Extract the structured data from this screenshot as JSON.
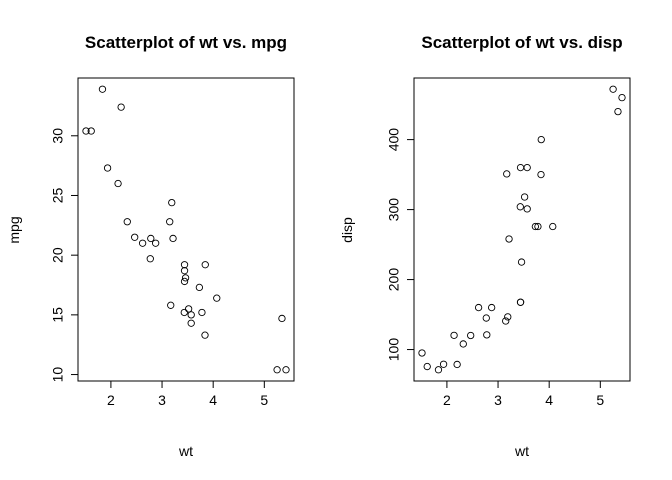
{
  "chart_data": [
    {
      "type": "scatter",
      "title": "Scatterplot of wt vs. mpg",
      "xlabel": "wt",
      "ylabel": "mpg",
      "xlim": [
        1.513,
        5.424
      ],
      "ylim": [
        10.4,
        33.9
      ],
      "xticks": [
        2,
        3,
        4,
        5
      ],
      "yticks": [
        10,
        15,
        20,
        25,
        30
      ],
      "grid": false,
      "legend": "none",
      "marker": "open-circle",
      "x": [
        2.62,
        2.875,
        2.32,
        3.215,
        3.44,
        3.46,
        3.57,
        3.19,
        3.15,
        3.44,
        3.44,
        4.07,
        3.73,
        3.78,
        5.25,
        5.424,
        5.345,
        2.2,
        1.615,
        1.835,
        2.465,
        3.52,
        3.435,
        3.84,
        3.845,
        1.935,
        2.14,
        1.513,
        3.17,
        2.77,
        3.57,
        2.78
      ],
      "y": [
        21.0,
        21.0,
        22.8,
        21.4,
        18.7,
        18.1,
        14.3,
        24.4,
        22.8,
        19.2,
        17.8,
        16.4,
        17.3,
        15.2,
        10.4,
        10.4,
        14.7,
        32.4,
        30.4,
        33.9,
        21.5,
        15.5,
        15.2,
        13.3,
        19.2,
        27.3,
        26.0,
        30.4,
        15.8,
        19.7,
        15.0,
        21.4
      ]
    },
    {
      "type": "scatter",
      "title": "Scatterplot of wt vs. disp",
      "xlabel": "wt",
      "ylabel": "disp",
      "xlim": [
        1.513,
        5.424
      ],
      "ylim": [
        71.1,
        472
      ],
      "xticks": [
        2,
        3,
        4,
        5
      ],
      "yticks": [
        100,
        200,
        300,
        400
      ],
      "grid": false,
      "legend": "none",
      "marker": "open-circle",
      "x": [
        2.62,
        2.875,
        2.32,
        3.215,
        3.44,
        3.46,
        3.57,
        3.19,
        3.15,
        3.44,
        3.44,
        4.07,
        3.73,
        3.78,
        5.25,
        5.424,
        5.345,
        2.2,
        1.615,
        1.835,
        2.465,
        3.52,
        3.435,
        3.84,
        3.845,
        1.935,
        2.14,
        1.513,
        3.17,
        2.77,
        3.57,
        2.78
      ],
      "y": [
        160,
        160,
        108,
        258,
        360,
        225,
        360,
        146.7,
        140.8,
        167.6,
        167.6,
        275.8,
        275.8,
        275.8,
        472,
        460,
        440,
        78.7,
        75.7,
        71.1,
        120.1,
        318,
        304,
        350,
        400,
        79,
        120.3,
        95.1,
        351,
        145,
        301,
        121
      ]
    }
  ]
}
